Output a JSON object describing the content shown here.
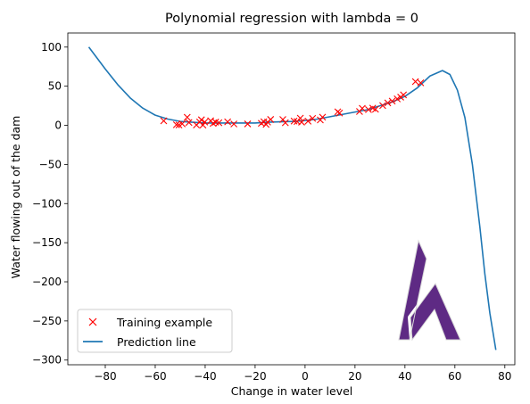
{
  "chart_data": {
    "type": "scatter",
    "title": "Polynomial regression with lambda = 0",
    "xlabel": "Change in water level",
    "ylabel": "Water flowing out of the dam",
    "xlim": [
      -95,
      84
    ],
    "ylim": [
      -306,
      118
    ],
    "xticks": [
      -80,
      -60,
      -40,
      -20,
      0,
      20,
      40,
      60,
      80
    ],
    "yticks": [
      100,
      50,
      0,
      -50,
      -100,
      -150,
      -200,
      -250,
      -300
    ],
    "legend_position": "lower left",
    "series": [
      {
        "name": "Training example",
        "kind": "scatter",
        "marker": "x",
        "color": "#ff0000",
        "points": [
          [
            -56.6,
            5.7
          ],
          [
            -51.5,
            0.8
          ],
          [
            -50.5,
            0.5
          ],
          [
            -49.2,
            1.9
          ],
          [
            -47.2,
            10.3
          ],
          [
            -46.5,
            3.6
          ],
          [
            -43.5,
            0.5
          ],
          [
            -42.2,
            4.3
          ],
          [
            -41.5,
            7.1
          ],
          [
            -40.9,
            0.3
          ],
          [
            -40.2,
            4.2
          ],
          [
            -37.8,
            5.8
          ],
          [
            -36.8,
            2.4
          ],
          [
            -35.8,
            4.1
          ],
          [
            -34.5,
            3.3
          ],
          [
            -31.0,
            4.4
          ],
          [
            -28.5,
            1.7
          ],
          [
            -23.0,
            1.8
          ],
          [
            -17.5,
            2.6
          ],
          [
            -16.5,
            4.6
          ],
          [
            -15.6,
            1.2
          ],
          [
            -15.0,
            4.2
          ],
          [
            -13.8,
            7.5
          ],
          [
            -8.9,
            7.4
          ],
          [
            -7.9,
            3.3
          ],
          [
            -4.4,
            5.4
          ],
          [
            -3.2,
            4.9
          ],
          [
            -1.9,
            9.2
          ],
          [
            -1.4,
            4.1
          ],
          [
            1.2,
            5.3
          ],
          [
            3.0,
            8.9
          ],
          [
            6.1,
            6.9
          ],
          [
            7.0,
            10.4
          ],
          [
            13.1,
            17.3
          ],
          [
            13.8,
            15.7
          ],
          [
            21.8,
            17.7
          ],
          [
            22.9,
            21.7
          ],
          [
            25.4,
            20.1
          ],
          [
            27.1,
            22.0
          ],
          [
            28.2,
            20.6
          ],
          [
            31.1,
            25.2
          ],
          [
            33.1,
            28.7
          ],
          [
            34.9,
            31.0
          ],
          [
            36.9,
            33.8
          ],
          [
            38.3,
            36.0
          ],
          [
            39.4,
            38.9
          ],
          [
            44.2,
            55.9
          ],
          [
            46.3,
            54.3
          ]
        ]
      },
      {
        "name": "Prediction line",
        "kind": "line",
        "color": "#1f77b4",
        "x": [
          -86.6,
          -80,
          -75,
          -70,
          -65,
          -60,
          -55,
          -50,
          -45,
          -40,
          -35,
          -30,
          -25,
          -20,
          -15,
          -10,
          -5,
          0,
          5,
          10,
          15,
          20,
          25,
          30,
          35,
          40,
          45,
          50,
          55,
          58,
          61,
          64,
          67,
          70,
          72,
          74,
          76.4
        ],
        "y": [
          100,
          72,
          52,
          35,
          22,
          13,
          8,
          5,
          4,
          3,
          3,
          3,
          3,
          3,
          4,
          4.5,
          5,
          6,
          8,
          11,
          14,
          17,
          20,
          25,
          30,
          37,
          48,
          63,
          70,
          65,
          45,
          10,
          -50,
          -130,
          -190,
          -240,
          -287
        ]
      }
    ]
  }
}
